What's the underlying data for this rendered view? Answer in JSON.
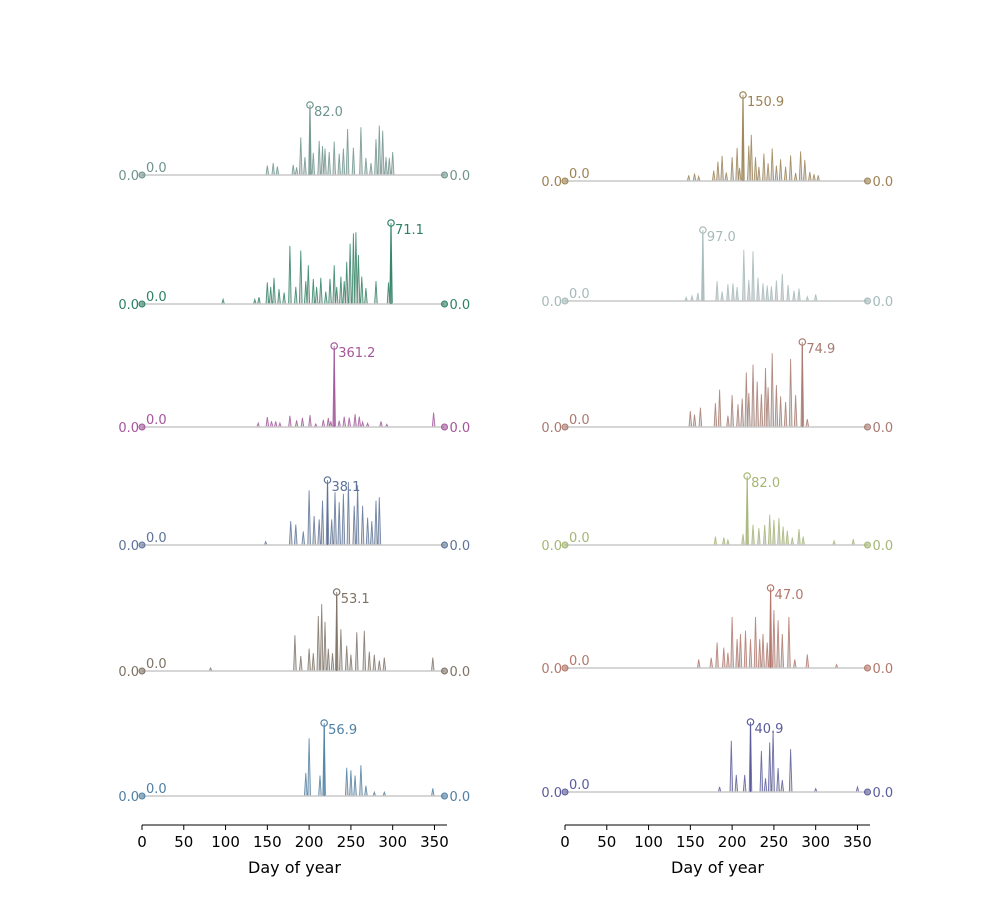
{
  "chart_data": {
    "type": "line",
    "x_range": [
      0,
      365
    ],
    "xlabel": "Day of year",
    "xticks": [
      0,
      50,
      100,
      150,
      200,
      250,
      300,
      350
    ],
    "grid": false,
    "legend": "none",
    "baseline_color": "#c8c8c8",
    "fill_color": "#cfcfcf",
    "panels": [
      {
        "column": 0,
        "row": 0,
        "color": "#6f948d",
        "start": {
          "x": 0,
          "y": 0.0,
          "label": "0.0"
        },
        "end": {
          "x": 362,
          "y": 0.0,
          "label": "0.0"
        },
        "min_label": "0.0",
        "max": {
          "x": 201,
          "y": 82.0,
          "label": "82.0"
        },
        "peaks": [
          [
            150,
            11
          ],
          [
            157,
            14
          ],
          [
            162,
            10
          ],
          [
            181,
            12
          ],
          [
            185,
            9
          ],
          [
            190,
            44
          ],
          [
            195,
            21
          ],
          [
            205,
            26
          ],
          [
            212,
            40
          ],
          [
            216,
            34
          ],
          [
            219,
            31
          ],
          [
            224,
            27
          ],
          [
            230,
            39
          ],
          [
            236,
            25
          ],
          [
            241,
            31
          ],
          [
            246,
            54
          ],
          [
            253,
            32
          ],
          [
            262,
            56
          ],
          [
            268,
            20
          ],
          [
            274,
            14
          ],
          [
            280,
            42
          ],
          [
            284,
            58
          ],
          [
            288,
            52
          ],
          [
            292,
            21
          ],
          [
            296,
            20
          ],
          [
            300,
            27
          ]
        ]
      },
      {
        "column": 1,
        "row": 0,
        "color": "#9c8355",
        "start": {
          "x": 0,
          "y": 0.0,
          "label": "0.0"
        },
        "end": {
          "x": 362,
          "y": 0.0,
          "label": "0.0"
        },
        "min_label": "0.0",
        "max": {
          "x": 213,
          "y": 150.9,
          "label": "150.9"
        },
        "peaks": [
          [
            148,
            10
          ],
          [
            155,
            13
          ],
          [
            160,
            8
          ],
          [
            178,
            18
          ],
          [
            183,
            34
          ],
          [
            188,
            44
          ],
          [
            193,
            15
          ],
          [
            200,
            42
          ],
          [
            206,
            58
          ],
          [
            209,
            23
          ],
          [
            220,
            62
          ],
          [
            223,
            81
          ],
          [
            228,
            42
          ],
          [
            232,
            25
          ],
          [
            238,
            48
          ],
          [
            243,
            31
          ],
          [
            248,
            57
          ],
          [
            253,
            27
          ],
          [
            258,
            38
          ],
          [
            264,
            25
          ],
          [
            270,
            45
          ],
          [
            276,
            14
          ],
          [
            282,
            52
          ],
          [
            287,
            37
          ],
          [
            293,
            16
          ],
          [
            298,
            12
          ],
          [
            303,
            10
          ]
        ]
      },
      {
        "column": 0,
        "row": 1,
        "color": "#2e8163",
        "start": {
          "x": 0,
          "y": 0.0,
          "label": "0.0"
        },
        "end": {
          "x": 362,
          "y": 0.0,
          "label": "0.0"
        },
        "min_label": "0.0",
        "max": {
          "x": 298,
          "y": 71.1,
          "label": "71.1"
        },
        "peaks": [
          [
            97,
            4
          ],
          [
            135,
            4
          ],
          [
            140,
            6
          ],
          [
            150,
            19
          ],
          [
            154,
            15
          ],
          [
            158,
            23
          ],
          [
            164,
            13
          ],
          [
            170,
            10
          ],
          [
            177,
            51
          ],
          [
            184,
            15
          ],
          [
            190,
            47
          ],
          [
            196,
            20
          ],
          [
            199,
            34
          ],
          [
            205,
            22
          ],
          [
            209,
            15
          ],
          [
            214,
            23
          ],
          [
            220,
            11
          ],
          [
            225,
            22
          ],
          [
            230,
            34
          ],
          [
            233,
            15
          ],
          [
            238,
            24
          ],
          [
            242,
            20
          ],
          [
            245,
            37
          ],
          [
            249,
            53
          ],
          [
            253,
            62
          ],
          [
            256,
            63
          ],
          [
            259,
            43
          ],
          [
            263,
            24
          ],
          [
            268,
            14
          ],
          [
            280,
            20
          ],
          [
            295,
            19
          ]
        ]
      },
      {
        "column": 1,
        "row": 1,
        "color": "#a5bab9",
        "start": {
          "x": 0,
          "y": 0.0,
          "label": "0.0"
        },
        "end": {
          "x": 362,
          "y": 0.0,
          "label": "0.0"
        },
        "min_label": "0.0",
        "max": {
          "x": 165,
          "y": 97.0,
          "label": "97.0"
        },
        "peaks": [
          [
            145,
            5
          ],
          [
            152,
            7
          ],
          [
            159,
            11
          ],
          [
            182,
            27
          ],
          [
            188,
            13
          ],
          [
            195,
            23
          ],
          [
            201,
            24
          ],
          [
            206,
            19
          ],
          [
            214,
            70
          ],
          [
            220,
            29
          ],
          [
            225,
            68
          ],
          [
            231,
            32
          ],
          [
            237,
            24
          ],
          [
            242,
            21
          ],
          [
            247,
            20
          ],
          [
            253,
            28
          ],
          [
            260,
            37
          ],
          [
            267,
            22
          ],
          [
            274,
            14
          ],
          [
            280,
            17
          ],
          [
            290,
            6
          ],
          [
            300,
            9
          ]
        ]
      },
      {
        "column": 0,
        "row": 2,
        "color": "#a4569b",
        "start": {
          "x": 0,
          "y": 0.0,
          "label": "0.0"
        },
        "end": {
          "x": 362,
          "y": 0.0,
          "label": "0.0"
        },
        "min_label": "0.0",
        "max": {
          "x": 230,
          "y": 361.2,
          "label": "361.2"
        },
        "peaks": [
          [
            139,
            18
          ],
          [
            150,
            44
          ],
          [
            155,
            26
          ],
          [
            160,
            25
          ],
          [
            165,
            18
          ],
          [
            177,
            50
          ],
          [
            185,
            30
          ],
          [
            192,
            41
          ],
          [
            201,
            53
          ],
          [
            208,
            14
          ],
          [
            217,
            32
          ],
          [
            223,
            40
          ],
          [
            226,
            25
          ],
          [
            236,
            28
          ],
          [
            242,
            46
          ],
          [
            248,
            42
          ],
          [
            255,
            57
          ],
          [
            260,
            47
          ],
          [
            264,
            22
          ],
          [
            270,
            17
          ],
          [
            286,
            25
          ],
          [
            293,
            12
          ],
          [
            349,
            64
          ]
        ]
      },
      {
        "column": 1,
        "row": 2,
        "color": "#a77b70",
        "start": {
          "x": 0,
          "y": 0.0,
          "label": "0.0"
        },
        "end": {
          "x": 362,
          "y": 0.0,
          "label": "0.0"
        },
        "min_label": "0.0",
        "max": {
          "x": 284,
          "y": 74.9,
          "label": "74.9"
        },
        "peaks": [
          [
            150,
            14
          ],
          [
            155,
            11
          ],
          [
            162,
            17
          ],
          [
            180,
            21
          ],
          [
            185,
            33
          ],
          [
            195,
            10
          ],
          [
            200,
            28
          ],
          [
            207,
            20
          ],
          [
            212,
            25
          ],
          [
            217,
            48
          ],
          [
            220,
            30
          ],
          [
            225,
            55
          ],
          [
            230,
            40
          ],
          [
            235,
            29
          ],
          [
            240,
            52
          ],
          [
            243,
            35
          ],
          [
            248,
            65
          ],
          [
            253,
            37
          ],
          [
            258,
            27
          ],
          [
            264,
            22
          ],
          [
            270,
            60
          ],
          [
            276,
            28
          ],
          [
            290,
            7
          ]
        ]
      },
      {
        "column": 0,
        "row": 3,
        "color": "#5e7399",
        "start": {
          "x": 0,
          "y": 0.0,
          "label": "0.0"
        },
        "end": {
          "x": 362,
          "y": 0.0,
          "label": "0.0"
        },
        "min_label": "0.0",
        "max": {
          "x": 222,
          "y": 38.1,
          "label": "38.1"
        },
        "peaks": [
          [
            148,
            2
          ],
          [
            178,
            14
          ],
          [
            184,
            12
          ],
          [
            193,
            8
          ],
          [
            200,
            32
          ],
          [
            206,
            17
          ],
          [
            212,
            15
          ],
          [
            216,
            26
          ],
          [
            227,
            15
          ],
          [
            231,
            31
          ],
          [
            236,
            25
          ],
          [
            241,
            30
          ],
          [
            247,
            37
          ],
          [
            254,
            23
          ],
          [
            258,
            35
          ],
          [
            264,
            23
          ],
          [
            270,
            16
          ],
          [
            275,
            14
          ],
          [
            280,
            26
          ],
          [
            284,
            28
          ]
        ]
      },
      {
        "column": 1,
        "row": 3,
        "color": "#a6b675",
        "start": {
          "x": 0,
          "y": 0.0,
          "label": "0.0"
        },
        "end": {
          "x": 362,
          "y": 0.0,
          "label": "0.0"
        },
        "min_label": "0.0",
        "max": {
          "x": 218,
          "y": 82.0,
          "label": "82.0"
        },
        "peaks": [
          [
            180,
            10
          ],
          [
            190,
            9
          ],
          [
            195,
            6
          ],
          [
            213,
            13
          ],
          [
            225,
            24
          ],
          [
            232,
            20
          ],
          [
            239,
            24
          ],
          [
            245,
            36
          ],
          [
            250,
            30
          ],
          [
            256,
            32
          ],
          [
            261,
            22
          ],
          [
            266,
            17
          ],
          [
            272,
            9
          ],
          [
            280,
            19
          ],
          [
            285,
            10
          ],
          [
            322,
            5
          ],
          [
            345,
            7
          ]
        ]
      },
      {
        "column": 0,
        "row": 4,
        "color": "#7f7366",
        "start": {
          "x": 0,
          "y": 0.0,
          "label": "0.0"
        },
        "end": {
          "x": 362,
          "y": 0.0,
          "label": "0.0"
        },
        "min_label": "0.0",
        "max": {
          "x": 233,
          "y": 53.1,
          "label": "53.1"
        },
        "peaks": [
          [
            82,
            2
          ],
          [
            183,
            24
          ],
          [
            190,
            10
          ],
          [
            200,
            15
          ],
          [
            205,
            12
          ],
          [
            211,
            37
          ],
          [
            215,
            45
          ],
          [
            219,
            33
          ],
          [
            223,
            15
          ],
          [
            228,
            12
          ],
          [
            238,
            28
          ],
          [
            245,
            17
          ],
          [
            250,
            11
          ],
          [
            257,
            26
          ],
          [
            266,
            27
          ],
          [
            272,
            13
          ],
          [
            278,
            11
          ],
          [
            284,
            7
          ],
          [
            290,
            9
          ],
          [
            348,
            9
          ]
        ]
      },
      {
        "column": 1,
        "row": 4,
        "color": "#b3776b",
        "start": {
          "x": 0,
          "y": 0.0,
          "label": "0.0"
        },
        "end": {
          "x": 362,
          "y": 0.0,
          "label": "0.0"
        },
        "min_label": "0.0",
        "max": {
          "x": 246,
          "y": 47.0,
          "label": "47.0"
        },
        "peaks": [
          [
            160,
            5
          ],
          [
            175,
            6
          ],
          [
            182,
            15
          ],
          [
            190,
            12
          ],
          [
            195,
            9
          ],
          [
            200,
            30
          ],
          [
            206,
            17
          ],
          [
            210,
            20
          ],
          [
            216,
            22
          ],
          [
            222,
            17
          ],
          [
            228,
            30
          ],
          [
            233,
            17
          ],
          [
            237,
            20
          ],
          [
            242,
            15
          ],
          [
            250,
            34
          ],
          [
            255,
            28
          ],
          [
            260,
            20
          ],
          [
            268,
            30
          ],
          [
            275,
            5
          ],
          [
            290,
            8
          ],
          [
            325,
            2
          ]
        ]
      },
      {
        "column": 0,
        "row": 5,
        "color": "#4f80a4",
        "start": {
          "x": 0,
          "y": 0.0,
          "label": "0.0"
        },
        "end": {
          "x": 362,
          "y": 0.0,
          "label": "0.0"
        },
        "min_label": "0.0",
        "max": {
          "x": 218,
          "y": 56.9,
          "label": "56.9"
        },
        "peaks": [
          [
            196,
            18
          ],
          [
            200,
            45
          ],
          [
            213,
            16
          ],
          [
            245,
            22
          ],
          [
            250,
            20
          ],
          [
            255,
            16
          ],
          [
            262,
            24
          ],
          [
            268,
            8
          ],
          [
            278,
            3
          ],
          [
            290,
            3
          ],
          [
            348,
            6
          ]
        ]
      },
      {
        "column": 1,
        "row": 5,
        "color": "#5b5c9b",
        "start": {
          "x": 0,
          "y": 0.0,
          "label": "0.0"
        },
        "end": {
          "x": 362,
          "y": 0.0,
          "label": "0.0"
        },
        "min_label": "0.0",
        "max": {
          "x": 222,
          "y": 40.9,
          "label": "40.9"
        },
        "peaks": [
          [
            185,
            3
          ],
          [
            199,
            30
          ],
          [
            205,
            10
          ],
          [
            215,
            10
          ],
          [
            235,
            24
          ],
          [
            240,
            8
          ],
          [
            245,
            29
          ],
          [
            249,
            36
          ],
          [
            255,
            14
          ],
          [
            260,
            7
          ],
          [
            270,
            25
          ],
          [
            300,
            2
          ],
          [
            350,
            3
          ]
        ]
      }
    ]
  }
}
